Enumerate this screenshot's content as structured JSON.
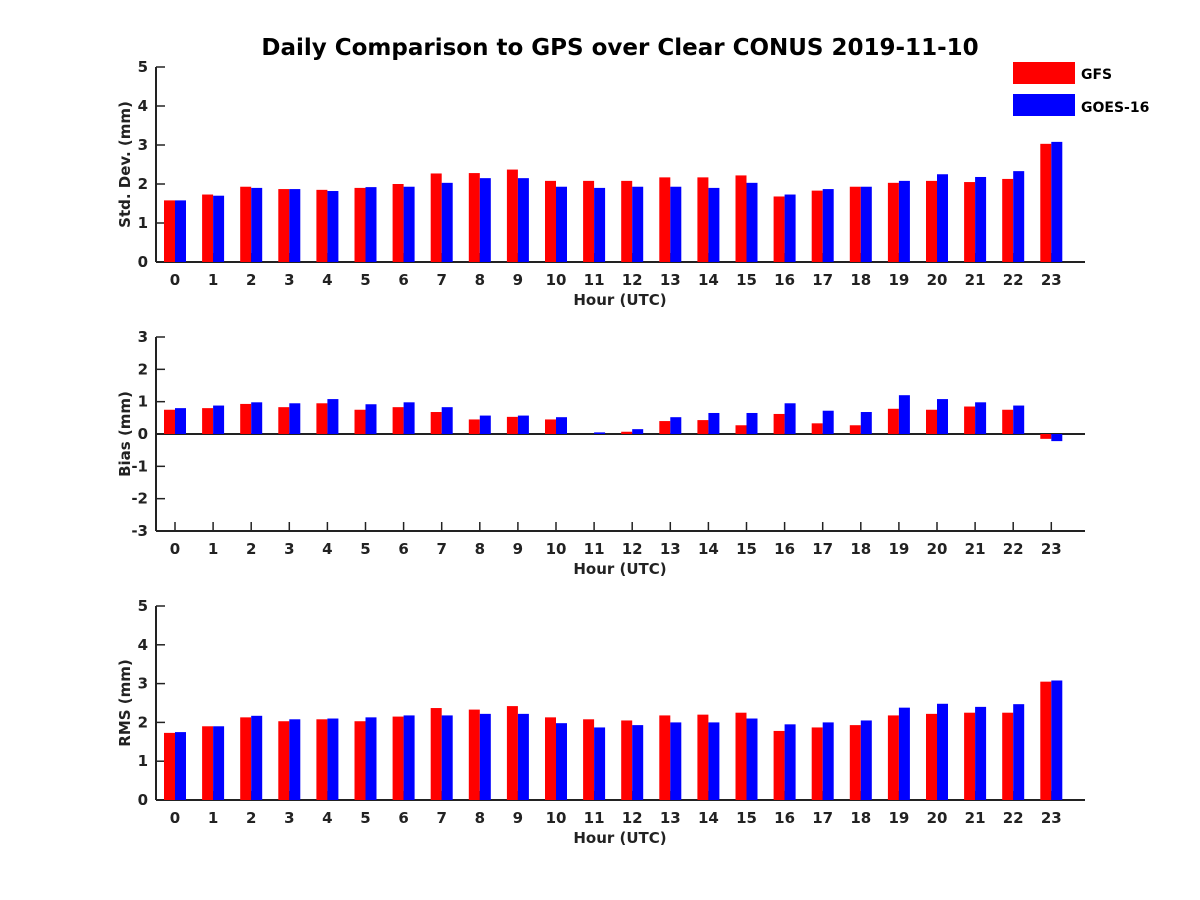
{
  "colors": {
    "gfs": "#ff0000",
    "goes": "#0000ff",
    "axis": "#222222"
  },
  "chart_data": {
    "type": "bar",
    "title": "Daily Comparison to GPS over Clear CONUS 2019-11-10",
    "legend": {
      "placement": "top-right",
      "entries": [
        "GFS",
        "GOES-16"
      ]
    },
    "categories": [
      "0",
      "1",
      "2",
      "3",
      "4",
      "5",
      "6",
      "7",
      "8",
      "9",
      "10",
      "11",
      "12",
      "13",
      "14",
      "15",
      "16",
      "17",
      "18",
      "19",
      "20",
      "21",
      "22",
      "23"
    ],
    "panels": [
      {
        "id": "std",
        "ylabel": "Std. Dev. (mm)",
        "xlabel": "Hour (UTC)",
        "ylim": [
          0,
          5
        ],
        "yticks": [
          "0",
          "1",
          "2",
          "3",
          "4",
          "5"
        ],
        "series": [
          {
            "name": "GFS",
            "values": [
              1.58,
              1.73,
              1.93,
              1.87,
              1.85,
              1.9,
              2.0,
              2.27,
              2.28,
              2.37,
              2.08,
              2.08,
              2.08,
              2.17,
              2.17,
              2.22,
              1.68,
              1.83,
              1.93,
              2.03,
              2.08,
              2.05,
              2.13,
              3.03
            ]
          },
          {
            "name": "GOES-16",
            "values": [
              1.58,
              1.7,
              1.9,
              1.87,
              1.82,
              1.92,
              1.93,
              2.03,
              2.15,
              2.15,
              1.93,
              1.9,
              1.93,
              1.93,
              1.9,
              2.03,
              1.73,
              1.87,
              1.93,
              2.08,
              2.25,
              2.18,
              2.33,
              3.08
            ]
          }
        ]
      },
      {
        "id": "bias",
        "ylabel": "Bias (mm)",
        "xlabel": "Hour (UTC)",
        "ylim": [
          -3,
          3
        ],
        "yticks": [
          "-3",
          "-2",
          "-1",
          "0",
          "1",
          "2",
          "3"
        ],
        "series": [
          {
            "name": "GFS",
            "values": [
              0.75,
              0.8,
              0.93,
              0.83,
              0.95,
              0.75,
              0.83,
              0.68,
              0.45,
              0.53,
              0.45,
              0.0,
              0.07,
              0.4,
              0.43,
              0.27,
              0.62,
              0.33,
              0.27,
              0.78,
              0.75,
              0.85,
              0.75,
              -0.15
            ]
          },
          {
            "name": "GOES-16",
            "values": [
              0.8,
              0.88,
              0.98,
              0.95,
              1.08,
              0.92,
              0.98,
              0.83,
              0.57,
              0.57,
              0.52,
              0.05,
              0.15,
              0.52,
              0.65,
              0.65,
              0.95,
              0.72,
              0.68,
              1.2,
              1.08,
              0.98,
              0.88,
              -0.22
            ]
          }
        ]
      },
      {
        "id": "rms",
        "ylabel": "RMS (mm)",
        "xlabel": "Hour (UTC)",
        "ylim": [
          0,
          5
        ],
        "yticks": [
          "0",
          "1",
          "2",
          "3",
          "4",
          "5"
        ],
        "series": [
          {
            "name": "GFS",
            "values": [
              1.73,
              1.9,
              2.13,
              2.03,
              2.08,
              2.03,
              2.15,
              2.37,
              2.33,
              2.42,
              2.13,
              2.08,
              2.05,
              2.18,
              2.2,
              2.25,
              1.78,
              1.87,
              1.93,
              2.18,
              2.22,
              2.25,
              2.25,
              3.05
            ]
          },
          {
            "name": "GOES-16",
            "values": [
              1.75,
              1.9,
              2.17,
              2.08,
              2.1,
              2.13,
              2.18,
              2.18,
              2.22,
              2.22,
              1.98,
              1.87,
              1.93,
              2.0,
              2.0,
              2.1,
              1.95,
              2.0,
              2.05,
              2.38,
              2.48,
              2.4,
              2.47,
              3.08
            ]
          }
        ]
      }
    ]
  }
}
